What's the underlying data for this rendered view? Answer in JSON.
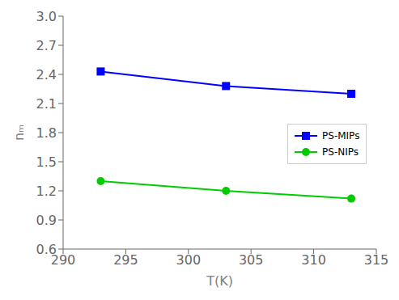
{
  "chart_data": {
    "type": "line",
    "xlabel": "T(K)",
    "ylabel": "nₘ",
    "xlim": [
      290,
      315
    ],
    "ylim": [
      0.6,
      3.0
    ],
    "xticks": [
      290,
      295,
      300,
      305,
      310,
      315
    ],
    "yticks": [
      0.6,
      0.9,
      1.2,
      1.5,
      1.8,
      2.1,
      2.4,
      2.7,
      {
        "value": 3.0,
        "label": "3.0"
      }
    ],
    "x": [
      293,
      303,
      313
    ],
    "series": [
      {
        "name": "PS-MIPs",
        "color": "#0000ff",
        "marker": "square",
        "values": [
          2.43,
          2.28,
          2.2
        ]
      },
      {
        "name": "PS-NIPs",
        "color": "#00cc00",
        "marker": "circle",
        "values": [
          1.3,
          1.2,
          1.12
        ]
      }
    ],
    "legend": "right"
  }
}
